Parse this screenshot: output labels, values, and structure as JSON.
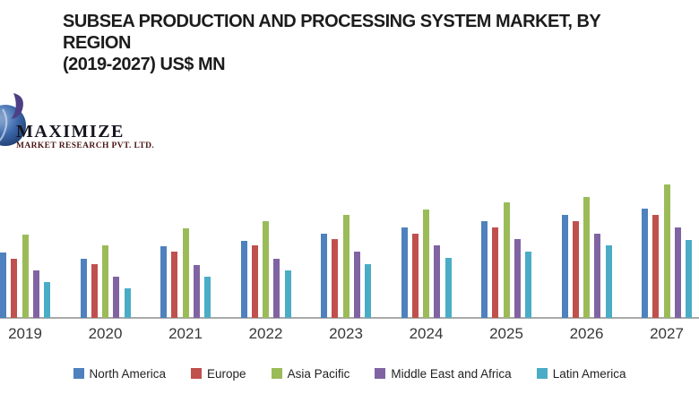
{
  "header": {
    "title_line1": "SUBSEA PRODUCTION AND PROCESSING SYSTEM MARKET, BY REGION",
    "title_line2": "(2019-2027) US$ MN"
  },
  "logo": {
    "title": "MAXIMIZE",
    "subtitle": "MARKET RESEARCH PVT. LTD."
  },
  "chart_data": {
    "type": "bar",
    "title": "SUBSEA PRODUCTION AND PROCESSING SYSTEM MARKET, BY REGION (2019-2027) US$ MN",
    "xlabel": "",
    "ylabel": "",
    "categories": [
      "2019",
      "2020",
      "2021",
      "2022",
      "2023",
      "2024",
      "2025",
      "2026",
      "2027"
    ],
    "series": [
      {
        "name": "North America",
        "color": "#4e81bd",
        "values": [
          73,
          66,
          80,
          86,
          94,
          101,
          108,
          115,
          122
        ]
      },
      {
        "name": "Europe",
        "color": "#c0504d",
        "values": [
          66,
          60,
          74,
          81,
          88,
          94,
          101,
          108,
          115
        ]
      },
      {
        "name": "Asia Pacific",
        "color": "#9bbb59",
        "values": [
          93,
          81,
          100,
          108,
          115,
          121,
          129,
          135,
          149
        ]
      },
      {
        "name": "Middle East and Africa",
        "color": "#8064a2",
        "values": [
          53,
          46,
          59,
          66,
          74,
          81,
          88,
          94,
          101
        ]
      },
      {
        "name": "Latin America",
        "color": "#4bacc6",
        "values": [
          40,
          33,
          46,
          53,
          60,
          67,
          74,
          81,
          87
        ]
      }
    ],
    "value_axis_shown": false,
    "value_units": "relative height (no numeric axis shown in image)",
    "ylim": [
      0,
      160
    ],
    "grid": false,
    "legend_position": "bottom"
  }
}
